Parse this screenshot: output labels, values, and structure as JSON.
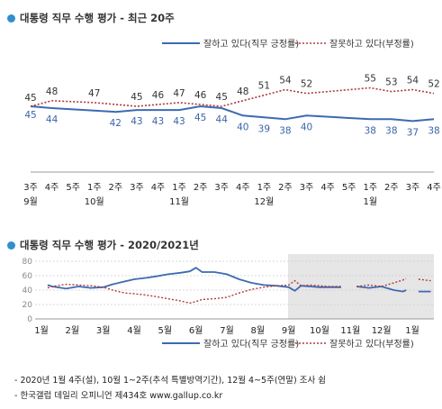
{
  "chart_data": [
    {
      "type": "line",
      "title": "대통령 직무 수행 평가 - 최근 20주",
      "x_labels": [
        [
          "3주",
          "9월"
        ],
        [
          "4주",
          ""
        ],
        [
          "5주",
          ""
        ],
        [
          "1주",
          "10월"
        ],
        [
          "2주",
          ""
        ],
        [
          "3주",
          ""
        ],
        [
          "4주",
          ""
        ],
        [
          "1주",
          "11월"
        ],
        [
          "2주",
          ""
        ],
        [
          "3주",
          ""
        ],
        [
          "4주",
          ""
        ],
        [
          "1주",
          "12월"
        ],
        [
          "2주",
          ""
        ],
        [
          "3주",
          ""
        ],
        [
          "4주",
          ""
        ],
        [
          "5주",
          ""
        ],
        [
          "1주",
          "1월"
        ],
        [
          "2주",
          ""
        ],
        [
          "3주",
          ""
        ],
        [
          "4주",
          ""
        ]
      ],
      "series": [
        {
          "name": "잘하고 있다(직무 긍정률)",
          "color": "#3c6ab2",
          "style": "solid",
          "labeled": [
            [
              0,
              45
            ],
            [
              1,
              44
            ],
            [
              4,
              42
            ],
            [
              5,
              43
            ],
            [
              6,
              43
            ],
            [
              7,
              43
            ],
            [
              8,
              45
            ],
            [
              9,
              44
            ],
            [
              10,
              40
            ],
            [
              11,
              39
            ],
            [
              12,
              38
            ],
            [
              13,
              40
            ],
            [
              16,
              38
            ],
            [
              17,
              38
            ],
            [
              18,
              37
            ],
            [
              19,
              38
            ]
          ]
        },
        {
          "name": "잘못하고 있다(부정률)",
          "color": "#b03a3a",
          "style": "dotted",
          "labeled": [
            [
              0,
              45
            ],
            [
              1,
              48
            ],
            [
              3,
              47
            ],
            [
              5,
              45
            ],
            [
              6,
              46
            ],
            [
              7,
              47
            ],
            [
              8,
              46
            ],
            [
              9,
              45
            ],
            [
              10,
              48
            ],
            [
              11,
              51
            ],
            [
              12,
              54
            ],
            [
              13,
              52
            ],
            [
              16,
              55
            ],
            [
              17,
              53
            ],
            [
              18,
              54
            ],
            [
              19,
              52
            ]
          ]
        }
      ],
      "ylim": [
        20,
        70
      ],
      "legend": "top"
    },
    {
      "type": "line",
      "title": "대통령 직무 수행 평가 - 2020/2021년",
      "x_labels": [
        "1월",
        "2월",
        "3월",
        "4월",
        "5월",
        "6월",
        "7월",
        "8월",
        "9월",
        "10월",
        "11월",
        "12월",
        "1월"
      ],
      "yticks": [
        "80",
        "60",
        "40",
        "20",
        "0"
      ],
      "ylim": [
        0,
        90
      ],
      "shaded_from_month": 9,
      "series": [
        {
          "name": "잘하고 있다(직무 긍정률)",
          "color": "#3c6ab2",
          "style": "solid",
          "points": [
            [
              0.2,
              47
            ],
            [
              0.35,
              45
            ],
            [
              0.8,
              42
            ],
            [
              1.2,
              45
            ],
            [
              1.6,
              43
            ],
            [
              2.0,
              44
            ],
            [
              2.3,
              48
            ],
            [
              2.7,
              52
            ],
            [
              3.0,
              55
            ],
            [
              3.4,
              57
            ],
            [
              3.7,
              59
            ],
            [
              4.1,
              62
            ],
            [
              4.5,
              64
            ],
            [
              4.8,
              66
            ],
            [
              5.0,
              71
            ],
            [
              5.2,
              65
            ],
            [
              5.6,
              65
            ],
            [
              6.0,
              62
            ],
            [
              6.4,
              55
            ],
            [
              6.8,
              50
            ],
            [
              7.2,
              47
            ],
            [
              7.6,
              46
            ],
            [
              8.0,
              44
            ],
            [
              8.2,
              39
            ],
            [
              8.4,
              46
            ],
            [
              8.7,
              45
            ],
            [
              9.0,
              44
            ],
            [
              9.3,
              44
            ],
            [
              9.7,
              44
            ],
            [
              10.0,
              null
            ],
            [
              10.2,
              45
            ],
            [
              10.6,
              43
            ],
            [
              11.0,
              45
            ],
            [
              11.4,
              40
            ],
            [
              11.7,
              38
            ],
            [
              11.8,
              40
            ],
            [
              12.0,
              null
            ],
            [
              12.2,
              38
            ],
            [
              12.6,
              38
            ]
          ]
        },
        {
          "name": "잘못하고 있다(부정률)",
          "color": "#b03a3a",
          "style": "dotted",
          "points": [
            [
              0.2,
              43
            ],
            [
              0.35,
              45
            ],
            [
              0.8,
              48
            ],
            [
              1.2,
              47
            ],
            [
              1.6,
              46
            ],
            [
              2.0,
              44
            ],
            [
              2.3,
              40
            ],
            [
              2.7,
              36
            ],
            [
              3.0,
              35
            ],
            [
              3.4,
              33
            ],
            [
              3.7,
              31
            ],
            [
              4.1,
              28
            ],
            [
              4.5,
              25
            ],
            [
              4.8,
              22
            ],
            [
              5.0,
              24
            ],
            [
              5.2,
              27
            ],
            [
              5.6,
              28
            ],
            [
              6.0,
              30
            ],
            [
              6.4,
              36
            ],
            [
              6.8,
              41
            ],
            [
              7.2,
              44
            ],
            [
              7.6,
              46
            ],
            [
              8.0,
              47
            ],
            [
              8.2,
              53
            ],
            [
              8.4,
              46
            ],
            [
              8.7,
              47
            ],
            [
              9.0,
              46
            ],
            [
              9.3,
              45
            ],
            [
              9.7,
              45
            ],
            [
              10.0,
              null
            ],
            [
              10.2,
              45
            ],
            [
              10.6,
              47
            ],
            [
              11.0,
              45
            ],
            [
              11.4,
              50
            ],
            [
              11.7,
              54
            ],
            [
              11.8,
              56
            ],
            [
              12.0,
              null
            ],
            [
              12.2,
              55
            ],
            [
              12.6,
              53
            ]
          ]
        }
      ]
    }
  ],
  "notes": [
    "- 2020년 1월 4주(설), 10월 1~2주(추석 특별방역기간), 12월 4~5주(연말) 조사 쉼",
    "- 한국갤럽 데일리 오피니언 제434호 www.gallup.co.kr"
  ]
}
